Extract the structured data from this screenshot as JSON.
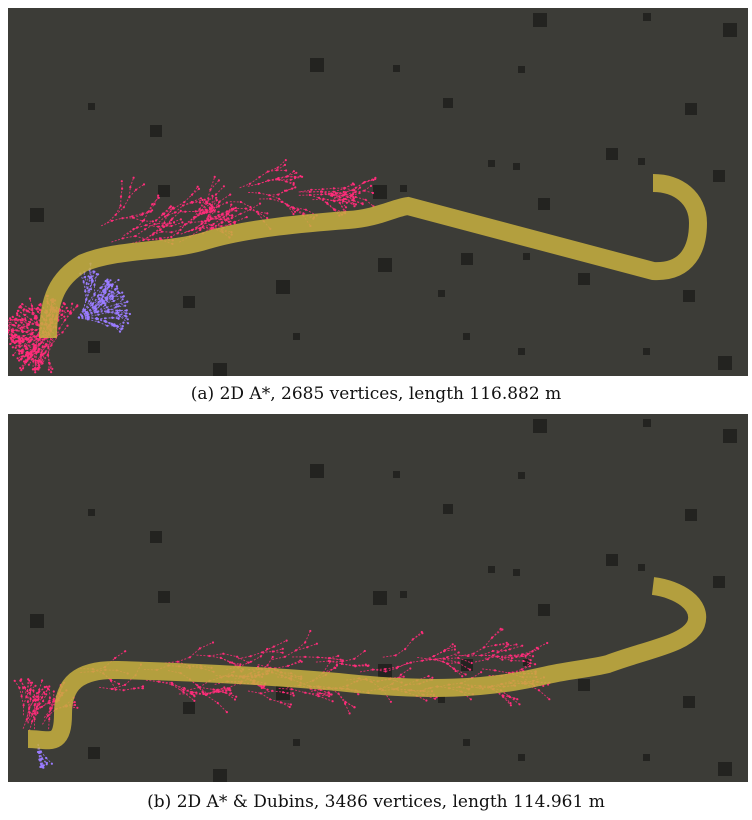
{
  "figure": {
    "panels": [
      {
        "id": "a",
        "caption": "(a) 2D A*, 2685 vertices, length 116.882 m",
        "planner": "2D A*",
        "vertices": 2685,
        "length_m": 116.882
      },
      {
        "id": "b",
        "caption": "(b) 2D A* & Dubins, 3486 vertices, length 114.961 m",
        "planner": "2D A* & Dubins",
        "vertices": 3486,
        "length_m": 114.961
      }
    ]
  },
  "colors": {
    "background": "#3c3c37",
    "obstacle": "#232320",
    "path": "#c8b040",
    "path_edge": "#8c7a2a",
    "tree": "#ff2d7a",
    "tree_alt": "#9a7cff"
  }
}
